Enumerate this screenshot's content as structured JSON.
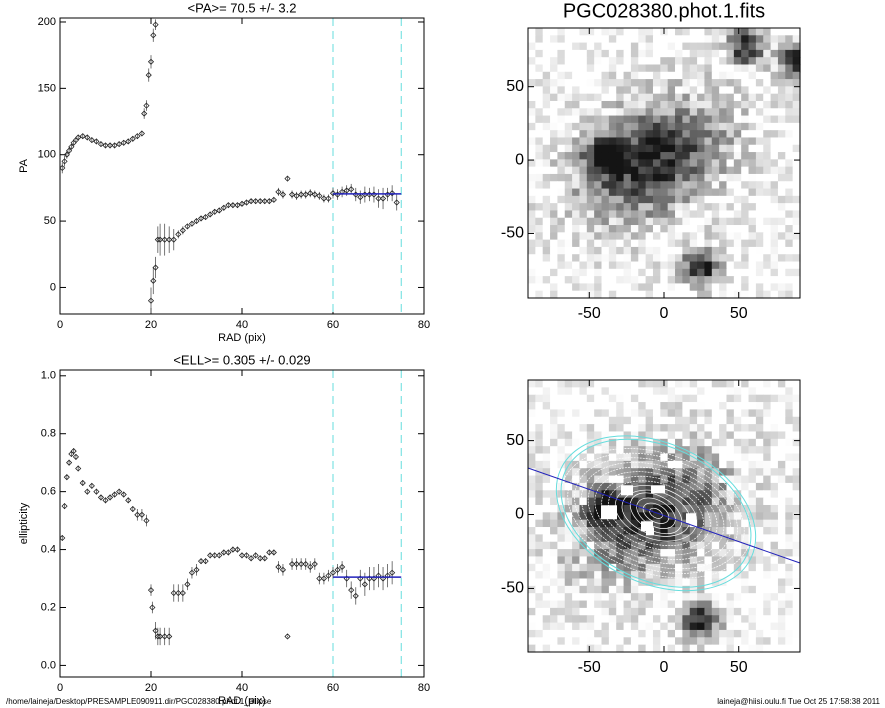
{
  "chart_data": [
    {
      "type": "errorbar",
      "title": "<PA>=  70.5 +/-   3.2",
      "xlabel": "RAD (pix)",
      "ylabel": "PA",
      "xlim": [
        0,
        80
      ],
      "xticks": [
        0,
        20,
        40,
        60,
        80
      ],
      "ylim": [
        -20,
        203
      ],
      "yticks": [
        0,
        50,
        100,
        150,
        200
      ],
      "x": [
        0.5,
        1,
        1.5,
        2,
        2.5,
        3,
        3.5,
        4,
        5,
        6,
        7,
        8,
        9,
        10,
        11,
        12,
        13,
        14,
        15,
        16,
        17,
        18,
        18.5,
        19,
        19.5,
        20,
        20.5,
        21,
        20,
        20.5,
        21,
        21.5,
        22,
        23,
        24,
        25,
        26,
        27,
        28,
        29,
        30,
        31,
        32,
        33,
        34,
        35,
        36,
        37,
        38,
        39,
        40,
        41,
        42,
        43,
        44,
        45,
        46,
        47,
        48,
        49,
        50,
        51,
        52,
        53,
        54,
        55,
        56,
        57,
        58,
        59,
        60,
        61,
        62,
        63,
        64,
        65,
        66,
        67,
        68,
        69,
        70,
        71,
        72,
        73,
        74
      ],
      "values": [
        90,
        95,
        100,
        103,
        106,
        109,
        111,
        113,
        114,
        113,
        111,
        110,
        108,
        107,
        107,
        107,
        108,
        109,
        110,
        112,
        114,
        116,
        131,
        137,
        160,
        170,
        190,
        198,
        -10,
        5,
        15,
        36,
        36,
        36,
        36,
        36,
        40,
        43,
        46,
        48,
        50,
        52,
        53,
        55,
        57,
        58,
        60,
        62,
        62,
        62,
        63,
        64,
        65,
        65,
        65,
        65,
        65,
        66,
        72,
        70,
        82,
        70,
        69,
        70,
        70,
        71,
        70,
        69,
        67,
        67,
        71,
        70,
        72,
        73,
        74,
        70,
        68,
        70,
        70,
        70,
        67,
        67,
        70,
        71,
        64
      ],
      "errors": [
        4,
        4,
        3,
        3,
        2,
        2,
        2,
        2,
        2,
        2,
        2,
        2,
        2,
        2,
        2,
        2,
        2,
        2,
        2,
        2,
        2,
        2,
        4,
        4,
        5,
        5,
        5,
        4,
        10,
        10,
        8,
        10,
        12,
        12,
        10,
        8,
        3,
        3,
        2,
        2,
        2,
        2,
        2,
        2,
        2,
        2,
        2,
        2,
        2,
        2,
        2,
        2,
        2,
        2,
        2,
        2,
        2,
        2,
        3,
        3,
        2,
        3,
        3,
        3,
        3,
        3,
        3,
        3,
        3,
        3,
        4,
        4,
        4,
        4,
        4,
        5,
        5,
        6,
        5,
        6,
        7,
        8,
        5,
        6,
        6
      ],
      "color": "#555555",
      "fit": {
        "value": 70.5,
        "xrange": [
          60,
          75
        ],
        "color": "#2222bb"
      },
      "vlines": [
        60,
        75
      ],
      "vline_color": "#66dddd"
    },
    {
      "type": "errorbar",
      "title": "<ELL>= 0.305 +/-  0.029",
      "xlabel": "RAD (pix)",
      "ylabel": "ellipticity",
      "xlim": [
        0,
        80
      ],
      "xticks": [
        0,
        20,
        40,
        60,
        80
      ],
      "ylim": [
        -0.04,
        1.02
      ],
      "yticks": [
        {
          "value": 0,
          "label": "0.0"
        },
        0.2,
        0.4,
        0.6,
        0.8,
        {
          "value": 1,
          "label": "1.0"
        }
      ],
      "x": [
        0.5,
        1,
        1.5,
        2,
        2.5,
        3,
        3.5,
        4,
        5,
        6,
        7,
        8,
        9,
        10,
        11,
        12,
        13,
        14,
        15,
        16,
        17,
        18,
        19,
        20,
        20.3,
        21,
        21.5,
        22,
        23,
        24,
        25,
        26,
        27,
        28,
        29,
        30,
        31,
        32,
        33,
        34,
        35,
        36,
        37,
        38,
        39,
        40,
        41,
        42,
        43,
        44,
        45,
        46,
        47,
        48,
        49,
        50,
        51,
        52,
        53,
        54,
        55,
        56,
        57,
        58,
        59,
        60,
        61,
        62,
        63,
        64,
        65,
        66,
        67,
        68,
        69,
        70,
        71,
        72,
        73
      ],
      "values": [
        0.44,
        0.55,
        0.65,
        0.7,
        0.73,
        0.74,
        0.72,
        0.68,
        0.63,
        0.6,
        0.62,
        0.6,
        0.58,
        0.57,
        0.58,
        0.59,
        0.6,
        0.59,
        0.57,
        0.54,
        0.52,
        0.52,
        0.5,
        0.26,
        0.2,
        0.12,
        0.1,
        0.1,
        0.1,
        0.1,
        0.25,
        0.25,
        0.25,
        0.28,
        0.32,
        0.33,
        0.36,
        0.36,
        0.38,
        0.38,
        0.38,
        0.39,
        0.39,
        0.4,
        0.4,
        0.38,
        0.38,
        0.37,
        0.38,
        0.37,
        0.37,
        0.39,
        0.39,
        0.34,
        0.33,
        0.1,
        0.35,
        0.35,
        0.35,
        0.35,
        0.34,
        0.35,
        0.3,
        0.3,
        0.31,
        0.32,
        0.33,
        0.34,
        0.3,
        0.26,
        0.24,
        0.3,
        0.28,
        0.3,
        0.3,
        0.31,
        0.3,
        0.31,
        0.32
      ],
      "errors": [
        0.01,
        0.01,
        0.01,
        0.01,
        0.01,
        0.01,
        0.01,
        0.01,
        0.01,
        0.01,
        0.01,
        0.01,
        0.01,
        0.01,
        0.01,
        0.01,
        0.01,
        0.01,
        0.01,
        0.01,
        0.02,
        0.02,
        0.02,
        0.02,
        0.02,
        0.03,
        0.03,
        0.03,
        0.03,
        0.03,
        0.03,
        0.03,
        0.03,
        0.02,
        0.02,
        0.02,
        0.01,
        0.01,
        0.01,
        0.01,
        0.01,
        0.01,
        0.01,
        0.01,
        0.01,
        0.01,
        0.01,
        0.01,
        0.01,
        0.01,
        0.01,
        0.01,
        0.01,
        0.02,
        0.02,
        0.003,
        0.02,
        0.02,
        0.02,
        0.02,
        0.02,
        0.02,
        0.02,
        0.02,
        0.02,
        0.02,
        0.02,
        0.02,
        0.03,
        0.03,
        0.03,
        0.03,
        0.04,
        0.04,
        0.04,
        0.04,
        0.04,
        0.04,
        0.04
      ],
      "color": "#555555",
      "fit": {
        "value": 0.305,
        "xrange": [
          60,
          75
        ],
        "color": "#2222bb"
      },
      "vlines": [
        60,
        75
      ],
      "vline_color": "#66dddd"
    },
    {
      "type": "image",
      "title": "PGC028380.phot.1.fits",
      "xlim": [
        -91,
        91
      ],
      "xticks": [
        -50,
        0,
        50
      ],
      "ylim": [
        -94,
        90
      ],
      "yticks": [
        -50,
        0,
        50
      ]
    },
    {
      "type": "image",
      "xlim": [
        -91,
        91
      ],
      "xticks": [
        -50,
        0,
        50
      ],
      "ylim": [
        -93,
        91
      ],
      "yticks": [
        -50,
        0,
        50
      ]
    }
  ],
  "footer": {
    "left": "/home/laineja/Desktop/PRESAMPLE090911.dir/PGC028380.phot.1_ellipse",
    "right": "laineja@hiisi.oulu.fi  Tue Oct 25 17:58:38 2011"
  }
}
